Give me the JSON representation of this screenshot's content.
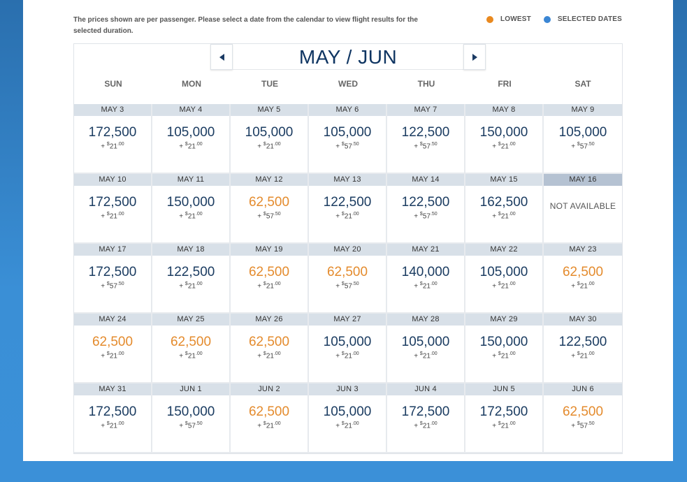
{
  "note": "The prices shown are per passenger. Please select a date from the calendar to view flight results for the selected duration.",
  "legend": [
    {
      "label": "LOWEST",
      "color": "#e9891f"
    },
    {
      "label": "SELECTED DATES",
      "color": "#3b86d4"
    }
  ],
  "calendar": {
    "month_title": "MAY / JUN",
    "days_of_week": [
      "SUN",
      "MON",
      "TUE",
      "WED",
      "THU",
      "FRI",
      "SAT"
    ],
    "weeks": [
      [
        {
          "date": "MAY 3",
          "miles": "172,500",
          "fee_dollars": "21",
          "fee_cents": "00",
          "lowest": false
        },
        {
          "date": "MAY 4",
          "miles": "105,000",
          "fee_dollars": "21",
          "fee_cents": "00",
          "lowest": false
        },
        {
          "date": "MAY 5",
          "miles": "105,000",
          "fee_dollars": "21",
          "fee_cents": "00",
          "lowest": false
        },
        {
          "date": "MAY 6",
          "miles": "105,000",
          "fee_dollars": "57",
          "fee_cents": "50",
          "lowest": false
        },
        {
          "date": "MAY 7",
          "miles": "122,500",
          "fee_dollars": "57",
          "fee_cents": "50",
          "lowest": false
        },
        {
          "date": "MAY 8",
          "miles": "150,000",
          "fee_dollars": "21",
          "fee_cents": "00",
          "lowest": false
        },
        {
          "date": "MAY 9",
          "miles": "105,000",
          "fee_dollars": "57",
          "fee_cents": "50",
          "lowest": false
        }
      ],
      [
        {
          "date": "MAY 10",
          "miles": "172,500",
          "fee_dollars": "21",
          "fee_cents": "00",
          "lowest": false
        },
        {
          "date": "MAY 11",
          "miles": "150,000",
          "fee_dollars": "21",
          "fee_cents": "00",
          "lowest": false
        },
        {
          "date": "MAY 12",
          "miles": "62,500",
          "fee_dollars": "57",
          "fee_cents": "50",
          "lowest": true
        },
        {
          "date": "MAY 13",
          "miles": "122,500",
          "fee_dollars": "21",
          "fee_cents": "00",
          "lowest": false
        },
        {
          "date": "MAY 14",
          "miles": "122,500",
          "fee_dollars": "57",
          "fee_cents": "50",
          "lowest": false
        },
        {
          "date": "MAY 15",
          "miles": "162,500",
          "fee_dollars": "21",
          "fee_cents": "00",
          "lowest": false
        },
        {
          "date": "MAY 16",
          "unavailable": true,
          "status": "NOT AVAILABLE"
        }
      ],
      [
        {
          "date": "MAY 17",
          "miles": "172,500",
          "fee_dollars": "57",
          "fee_cents": "50",
          "lowest": false
        },
        {
          "date": "MAY 18",
          "miles": "122,500",
          "fee_dollars": "21",
          "fee_cents": "00",
          "lowest": false
        },
        {
          "date": "MAY 19",
          "miles": "62,500",
          "fee_dollars": "21",
          "fee_cents": "00",
          "lowest": true
        },
        {
          "date": "MAY 20",
          "miles": "62,500",
          "fee_dollars": "57",
          "fee_cents": "50",
          "lowest": true
        },
        {
          "date": "MAY 21",
          "miles": "140,000",
          "fee_dollars": "21",
          "fee_cents": "00",
          "lowest": false
        },
        {
          "date": "MAY 22",
          "miles": "105,000",
          "fee_dollars": "21",
          "fee_cents": "00",
          "lowest": false
        },
        {
          "date": "MAY 23",
          "miles": "62,500",
          "fee_dollars": "21",
          "fee_cents": "00",
          "lowest": true
        }
      ],
      [
        {
          "date": "MAY 24",
          "miles": "62,500",
          "fee_dollars": "21",
          "fee_cents": "00",
          "lowest": true
        },
        {
          "date": "MAY 25",
          "miles": "62,500",
          "fee_dollars": "21",
          "fee_cents": "00",
          "lowest": true
        },
        {
          "date": "MAY 26",
          "miles": "62,500",
          "fee_dollars": "21",
          "fee_cents": "00",
          "lowest": true
        },
        {
          "date": "MAY 27",
          "miles": "105,000",
          "fee_dollars": "21",
          "fee_cents": "00",
          "lowest": false
        },
        {
          "date": "MAY 28",
          "miles": "105,000",
          "fee_dollars": "21",
          "fee_cents": "00",
          "lowest": false
        },
        {
          "date": "MAY 29",
          "miles": "150,000",
          "fee_dollars": "21",
          "fee_cents": "00",
          "lowest": false
        },
        {
          "date": "MAY 30",
          "miles": "122,500",
          "fee_dollars": "21",
          "fee_cents": "00",
          "lowest": false
        }
      ],
      [
        {
          "date": "MAY 31",
          "miles": "172,500",
          "fee_dollars": "21",
          "fee_cents": "00",
          "lowest": false
        },
        {
          "date": "JUN 1",
          "miles": "150,000",
          "fee_dollars": "57",
          "fee_cents": "50",
          "lowest": false
        },
        {
          "date": "JUN 2",
          "miles": "62,500",
          "fee_dollars": "21",
          "fee_cents": "00",
          "lowest": true
        },
        {
          "date": "JUN 3",
          "miles": "105,000",
          "fee_dollars": "21",
          "fee_cents": "00",
          "lowest": false
        },
        {
          "date": "JUN 4",
          "miles": "172,500",
          "fee_dollars": "21",
          "fee_cents": "00",
          "lowest": false
        },
        {
          "date": "JUN 5",
          "miles": "172,500",
          "fee_dollars": "21",
          "fee_cents": "00",
          "lowest": false
        },
        {
          "date": "JUN 6",
          "miles": "62,500",
          "fee_dollars": "57",
          "fee_cents": "50",
          "lowest": true
        }
      ]
    ],
    "fee_prefix": "+ ",
    "currency_symbol": "$"
  }
}
